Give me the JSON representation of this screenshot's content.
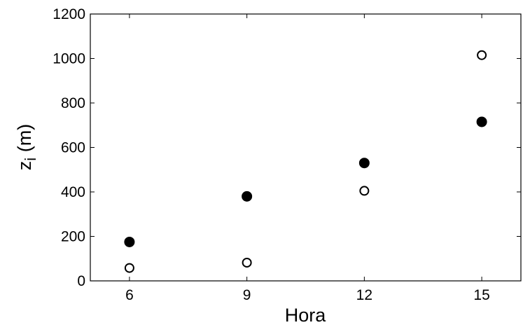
{
  "chart_data": {
    "type": "scatter",
    "title": "",
    "xlabel": "Hora",
    "ylabel_main": "z",
    "ylabel_sub": "i",
    "ylabel_unit": " (m)",
    "xlim": [
      5,
      16
    ],
    "ylim": [
      0,
      1200
    ],
    "xticks": [
      6,
      9,
      12,
      15
    ],
    "yticks": [
      0,
      200,
      400,
      600,
      800,
      1000,
      1200
    ],
    "grid": false,
    "series": [
      {
        "marker": "filled-circle",
        "color": "#000000",
        "points": [
          {
            "x": 6,
            "y": 175
          },
          {
            "x": 9,
            "y": 380
          },
          {
            "x": 12,
            "y": 530
          },
          {
            "x": 15,
            "y": 715
          }
        ]
      },
      {
        "marker": "open-circle",
        "color": "#000000",
        "points": [
          {
            "x": 6,
            "y": 58
          },
          {
            "x": 9,
            "y": 82
          },
          {
            "x": 12,
            "y": 405
          },
          {
            "x": 15,
            "y": 1015
          }
        ]
      }
    ]
  }
}
